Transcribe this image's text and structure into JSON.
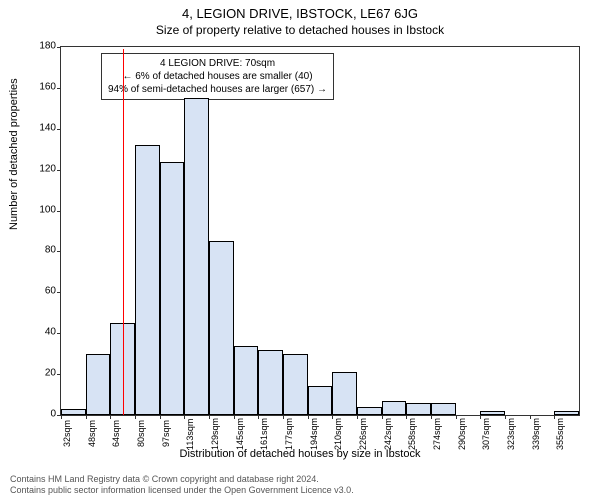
{
  "title": "4, LEGION DRIVE, IBSTOCK, LE67 6JG",
  "subtitle": "Size of property relative to detached houses in Ibstock",
  "y_axis_label": "Number of detached properties",
  "x_axis_label": "Distribution of detached houses by size in Ibstock",
  "chart": {
    "type": "histogram",
    "background_color": "#ffffff",
    "axis_color": "#333333",
    "bar_fill": "#d7e3f4",
    "bar_border": "#000000",
    "marker_color": "#ff0000",
    "ylim": [
      0,
      180
    ],
    "ytick_step": 20,
    "x_categories": [
      "32sqm",
      "48sqm",
      "64sqm",
      "80sqm",
      "97sqm",
      "113sqm",
      "129sqm",
      "145sqm",
      "161sqm",
      "177sqm",
      "194sqm",
      "210sqm",
      "226sqm",
      "242sqm",
      "258sqm",
      "274sqm",
      "290sqm",
      "307sqm",
      "323sqm",
      "339sqm",
      "355sqm"
    ],
    "values": [
      3,
      30,
      45,
      132,
      124,
      155,
      85,
      34,
      32,
      30,
      14,
      21,
      4,
      7,
      6,
      6,
      0,
      2,
      0,
      0,
      2
    ],
    "marker_index": 2.5,
    "bar_width_ratio": 1.0
  },
  "annotation": {
    "line1": "4 LEGION DRIVE: 70sqm",
    "line2": "← 6% of detached houses are smaller (40)",
    "line3": "94% of semi-detached houses are larger (657) →"
  },
  "footer_line1": "Contains HM Land Registry data © Crown copyright and database right 2024.",
  "footer_line2": "Contains public sector information licensed under the Open Government Licence v3.0."
}
